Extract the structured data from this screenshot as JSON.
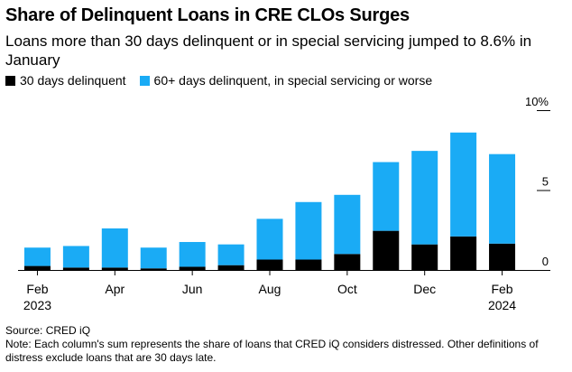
{
  "title": "Share of Delinquent Loans in CRE CLOs Surges",
  "subtitle": "Loans more than 30 days delinquent or in special servicing jumped to 8.6% in January",
  "source": "Source: CRED iQ",
  "note": "Note: Each column's sum represents the share of loans that CRED iQ considers distressed. Other definitions of distress exclude loans that are 30 days late.",
  "colors": {
    "series_30": "#000000",
    "series_60": "#1aabf5",
    "axis": "#000000"
  },
  "chart_data": {
    "type": "bar",
    "stacked": true,
    "title": "Share of Delinquent Loans in CRE CLOs Surges",
    "ylim": [
      0,
      10
    ],
    "y_ticks": [
      {
        "value": 10,
        "label": "10%"
      },
      {
        "value": 5,
        "label": "5"
      },
      {
        "value": 0,
        "label": "0"
      }
    ],
    "y_axis_side": "right",
    "legend_position": "top-left",
    "grid": false,
    "categories": [
      "Feb 2023",
      "Mar 2023",
      "Apr 2023",
      "May 2023",
      "Jun 2023",
      "Jul 2023",
      "Aug 2023",
      "Sep 2023",
      "Oct 2023",
      "Nov 2023",
      "Dec 2023",
      "Jan 2024",
      "Feb 2024"
    ],
    "x_tick_labels": [
      {
        "index": 0,
        "line1": "Feb",
        "line2": "2023"
      },
      {
        "index": 2,
        "line1": "Apr",
        "line2": ""
      },
      {
        "index": 4,
        "line1": "Jun",
        "line2": ""
      },
      {
        "index": 6,
        "line1": "Aug",
        "line2": ""
      },
      {
        "index": 8,
        "line1": "Oct",
        "line2": ""
      },
      {
        "index": 10,
        "line1": "Dec",
        "line2": ""
      },
      {
        "index": 12,
        "line1": "Feb",
        "line2": "2024"
      }
    ],
    "series": [
      {
        "name": "30 days delinquent",
        "color": "#000000",
        "values": [
          0.25,
          0.15,
          0.15,
          0.1,
          0.2,
          0.3,
          0.65,
          0.65,
          1.0,
          2.45,
          1.6,
          2.1,
          1.65
        ]
      },
      {
        "name": "60+ days delinquent, in special servicing or worse",
        "color": "#1aabf5",
        "values": [
          1.15,
          1.35,
          2.45,
          1.3,
          1.55,
          1.3,
          2.55,
          3.6,
          3.7,
          4.3,
          5.85,
          6.5,
          5.6
        ]
      }
    ]
  }
}
